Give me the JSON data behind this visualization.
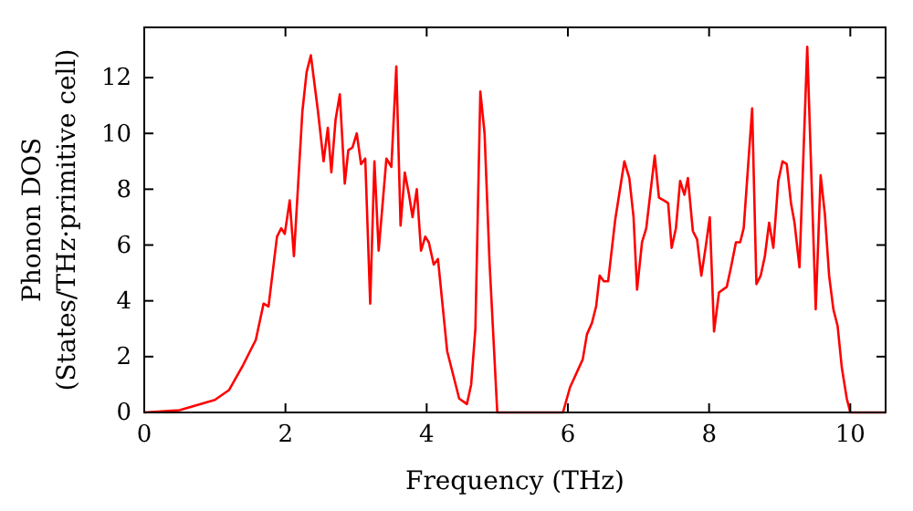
{
  "chart_data": {
    "type": "line",
    "xlabel": "Frequency (THz)",
    "ylabel": "Phonon DOS\n(States/THz·primitive cell)",
    "xlim": [
      0,
      10.5
    ],
    "xticks": [
      0,
      2,
      4,
      6,
      8,
      10
    ],
    "ylim": [
      0,
      13.8
    ],
    "yticks": [
      0,
      2,
      4,
      6,
      8,
      10,
      12
    ],
    "grid": false,
    "marker": "none",
    "line_style": "solid",
    "series": [
      {
        "color": "#ff0000",
        "x": [
          0,
          0.5,
          1.0,
          1.2,
          1.4,
          1.58,
          1.69,
          1.76,
          1.88,
          1.94,
          1.99,
          2.06,
          2.12,
          2.24,
          2.3,
          2.36,
          2.46,
          2.54,
          2.6,
          2.65,
          2.71,
          2.77,
          2.84,
          2.89,
          2.95,
          3.01,
          3.07,
          3.13,
          3.2,
          3.26,
          3.32,
          3.43,
          3.5,
          3.57,
          3.63,
          3.69,
          3.75,
          3.8,
          3.86,
          3.92,
          3.98,
          4.03,
          4.1,
          4.16,
          4.29,
          4.34,
          4.46,
          4.57,
          4.63,
          4.69,
          4.76,
          4.82,
          4.89,
          5.0,
          5.93,
          6.03,
          6.21,
          6.27,
          6.34,
          6.4,
          6.45,
          6.51,
          6.57,
          6.67,
          6.8,
          6.87,
          6.93,
          6.98,
          7.05,
          7.11,
          7.23,
          7.29,
          7.36,
          7.42,
          7.47,
          7.53,
          7.59,
          7.65,
          7.7,
          7.77,
          7.83,
          7.89,
          7.95,
          8.01,
          8.07,
          8.14,
          8.25,
          8.31,
          8.38,
          8.44,
          8.49,
          8.61,
          8.67,
          8.73,
          8.79,
          8.85,
          8.91,
          8.98,
          9.04,
          9.1,
          9.16,
          9.21,
          9.28,
          9.39,
          9.51,
          9.58,
          9.64,
          9.7,
          9.76,
          9.82,
          9.88,
          9.95,
          10.0,
          10.5
        ],
        "values": [
          0,
          0.08,
          0.45,
          0.8,
          1.7,
          2.6,
          3.9,
          3.8,
          6.3,
          6.6,
          6.4,
          7.6,
          5.6,
          10.8,
          12.2,
          12.8,
          10.8,
          9.0,
          10.2,
          8.6,
          10.5,
          11.4,
          8.2,
          9.4,
          9.5,
          10.0,
          8.9,
          9.1,
          3.9,
          9.0,
          5.8,
          9.1,
          8.8,
          12.4,
          6.7,
          8.6,
          7.8,
          7.0,
          8.0,
          5.8,
          6.3,
          6.1,
          5.3,
          5.5,
          2.2,
          1.7,
          0.5,
          0.3,
          1.0,
          3.0,
          11.5,
          10.0,
          5.4,
          0,
          0,
          0.9,
          1.9,
          2.8,
          3.2,
          3.8,
          4.9,
          4.7,
          4.7,
          6.9,
          9.0,
          8.4,
          7.0,
          4.4,
          6.1,
          6.6,
          9.2,
          7.7,
          7.6,
          7.5,
          5.9,
          6.6,
          8.3,
          7.8,
          8.4,
          6.5,
          6.2,
          4.9,
          5.9,
          7.0,
          2.9,
          4.3,
          4.5,
          5.2,
          6.1,
          6.1,
          6.6,
          10.9,
          4.6,
          4.9,
          5.6,
          6.8,
          5.9,
          8.3,
          9.0,
          8.9,
          7.5,
          6.8,
          5.2,
          13.1,
          3.7,
          8.5,
          7.1,
          4.9,
          3.7,
          3.1,
          1.6,
          0.5,
          0,
          0
        ]
      }
    ]
  }
}
